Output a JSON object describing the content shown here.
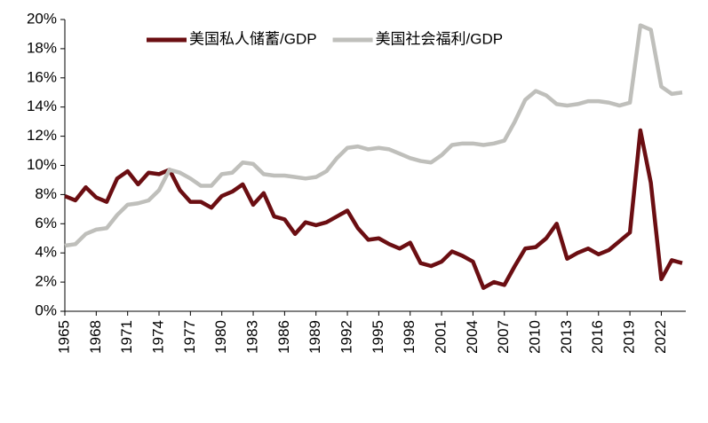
{
  "chart_data": {
    "type": "line",
    "x": [
      1965,
      1966,
      1967,
      1968,
      1969,
      1970,
      1971,
      1972,
      1973,
      1974,
      1975,
      1976,
      1977,
      1978,
      1979,
      1980,
      1981,
      1982,
      1983,
      1984,
      1985,
      1986,
      1987,
      1988,
      1989,
      1990,
      1991,
      1992,
      1993,
      1994,
      1995,
      1996,
      1997,
      1998,
      1999,
      2000,
      2001,
      2002,
      2003,
      2004,
      2005,
      2006,
      2007,
      2008,
      2009,
      2010,
      2011,
      2012,
      2013,
      2014,
      2015,
      2016,
      2017,
      2018,
      2019,
      2020,
      2021,
      2022,
      2023,
      2024
    ],
    "series": [
      {
        "name": "美国私人储蓄/GDP",
        "color": "#6b0e12",
        "values": [
          7.9,
          7.6,
          8.5,
          7.8,
          7.5,
          9.1,
          9.6,
          8.7,
          9.5,
          9.4,
          9.7,
          8.3,
          7.5,
          7.5,
          7.1,
          7.9,
          8.2,
          8.7,
          7.3,
          8.1,
          6.5,
          6.3,
          5.3,
          6.1,
          5.9,
          6.1,
          6.5,
          6.9,
          5.7,
          4.9,
          5.0,
          4.6,
          4.3,
          4.7,
          3.3,
          3.1,
          3.4,
          4.1,
          3.8,
          3.4,
          1.6,
          2.0,
          1.8,
          3.1,
          4.3,
          4.4,
          5.0,
          6.0,
          3.6,
          4.0,
          4.3,
          3.9,
          4.2,
          4.8,
          5.4,
          12.4,
          8.8,
          2.2,
          3.5,
          3.3
        ]
      },
      {
        "name": "美国社会福利/GDP",
        "color": "#bfbfbb",
        "values": [
          4.5,
          4.6,
          5.3,
          5.6,
          5.7,
          6.6,
          7.3,
          7.4,
          7.6,
          8.3,
          9.7,
          9.5,
          9.1,
          8.6,
          8.6,
          9.4,
          9.5,
          10.2,
          10.1,
          9.4,
          9.3,
          9.3,
          9.2,
          9.1,
          9.2,
          9.6,
          10.5,
          11.2,
          11.3,
          11.1,
          11.2,
          11.1,
          10.8,
          10.5,
          10.3,
          10.2,
          10.7,
          11.4,
          11.5,
          11.5,
          11.4,
          11.5,
          11.7,
          13.0,
          14.5,
          15.1,
          14.8,
          14.2,
          14.1,
          14.2,
          14.4,
          14.4,
          14.3,
          14.1,
          14.3,
          19.6,
          19.3,
          15.4,
          14.9,
          15.0
        ]
      }
    ],
    "xlim": [
      1965,
      2024
    ],
    "xticks": [
      1965,
      1968,
      1971,
      1974,
      1977,
      1980,
      1983,
      1986,
      1989,
      1992,
      1995,
      1998,
      2001,
      2004,
      2007,
      2010,
      2013,
      2016,
      2019,
      2022
    ],
    "ylim": [
      0,
      20
    ],
    "yticks": [
      {
        "value": 0,
        "label": "0%"
      },
      {
        "value": 2,
        "label": "2%"
      },
      {
        "value": 4,
        "label": "4%"
      },
      {
        "value": 6,
        "label": "6%"
      },
      {
        "value": 8,
        "label": "8%"
      },
      {
        "value": 10,
        "label": "10%"
      },
      {
        "value": 12,
        "label": "12%"
      },
      {
        "value": 14,
        "label": "14%"
      },
      {
        "value": 16,
        "label": "16%"
      },
      {
        "value": 18,
        "label": "18%"
      },
      {
        "value": 20,
        "label": "20%"
      }
    ],
    "legend": "top"
  }
}
